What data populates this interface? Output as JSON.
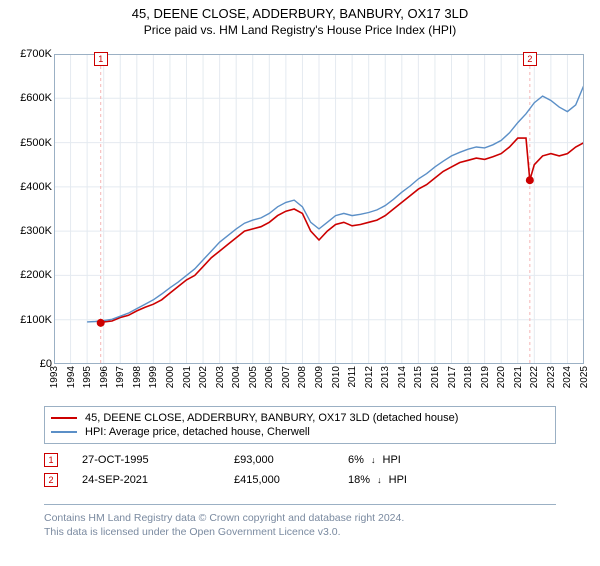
{
  "title": "45, DEENE CLOSE, ADDERBURY, BANBURY, OX17 3LD",
  "subtitle": "Price paid vs. HM Land Registry's House Price Index (HPI)",
  "chart": {
    "type": "line",
    "background_color": "#ffffff",
    "plot_border_color": "#9bb0c4",
    "grid_color": "#e4eaf0",
    "xlim": [
      1993,
      2025
    ],
    "ylim": [
      0,
      700000
    ],
    "ytick_step": 100000,
    "yticks": [
      "£0",
      "£100K",
      "£200K",
      "£300K",
      "£400K",
      "£500K",
      "£600K",
      "£700K"
    ],
    "xticks": [
      1993,
      1994,
      1995,
      1996,
      1997,
      1998,
      1999,
      2000,
      2001,
      2002,
      2003,
      2004,
      2005,
      2006,
      2007,
      2008,
      2009,
      2010,
      2011,
      2012,
      2013,
      2014,
      2015,
      2016,
      2017,
      2018,
      2019,
      2020,
      2021,
      2022,
      2023,
      2024,
      2025
    ],
    "series": [
      {
        "name": "45, DEENE CLOSE, ADDERBURY, BANBURY, OX17 3LD (detached house)",
        "color": "#cc0000",
        "line_width": 1.6,
        "data": [
          [
            1995.82,
            93000
          ],
          [
            1996,
            95000
          ],
          [
            1996.5,
            97000
          ],
          [
            1997,
            105000
          ],
          [
            1997.5,
            110000
          ],
          [
            1998,
            120000
          ],
          [
            1998.5,
            128000
          ],
          [
            1999,
            135000
          ],
          [
            1999.5,
            145000
          ],
          [
            2000,
            160000
          ],
          [
            2000.5,
            175000
          ],
          [
            2001,
            190000
          ],
          [
            2001.5,
            200000
          ],
          [
            2002,
            220000
          ],
          [
            2002.5,
            240000
          ],
          [
            2003,
            255000
          ],
          [
            2003.5,
            270000
          ],
          [
            2004,
            285000
          ],
          [
            2004.5,
            300000
          ],
          [
            2005,
            305000
          ],
          [
            2005.5,
            310000
          ],
          [
            2006,
            320000
          ],
          [
            2006.5,
            335000
          ],
          [
            2007,
            345000
          ],
          [
            2007.5,
            350000
          ],
          [
            2008,
            340000
          ],
          [
            2008.5,
            300000
          ],
          [
            2009,
            280000
          ],
          [
            2009.5,
            300000
          ],
          [
            2010,
            315000
          ],
          [
            2010.5,
            320000
          ],
          [
            2011,
            312000
          ],
          [
            2011.5,
            315000
          ],
          [
            2012,
            320000
          ],
          [
            2012.5,
            325000
          ],
          [
            2013,
            335000
          ],
          [
            2013.5,
            350000
          ],
          [
            2014,
            365000
          ],
          [
            2014.5,
            380000
          ],
          [
            2015,
            395000
          ],
          [
            2015.5,
            405000
          ],
          [
            2016,
            420000
          ],
          [
            2016.5,
            435000
          ],
          [
            2017,
            445000
          ],
          [
            2017.5,
            455000
          ],
          [
            2018,
            460000
          ],
          [
            2018.5,
            465000
          ],
          [
            2019,
            462000
          ],
          [
            2019.5,
            468000
          ],
          [
            2020,
            475000
          ],
          [
            2020.5,
            490000
          ],
          [
            2021,
            510000
          ],
          [
            2021.5,
            510000
          ],
          [
            2021.73,
            415000
          ],
          [
            2022,
            450000
          ],
          [
            2022.5,
            470000
          ],
          [
            2023,
            475000
          ],
          [
            2023.5,
            470000
          ],
          [
            2024,
            475000
          ],
          [
            2024.5,
            490000
          ],
          [
            2025,
            500000
          ]
        ]
      },
      {
        "name": "HPI: Average price, detached house, Cherwell",
        "color": "#5b8fc7",
        "line_width": 1.4,
        "data": [
          [
            1995,
            95000
          ],
          [
            1995.5,
            96000
          ],
          [
            1996,
            98000
          ],
          [
            1996.5,
            101000
          ],
          [
            1997,
            108000
          ],
          [
            1997.5,
            115000
          ],
          [
            1998,
            125000
          ],
          [
            1998.5,
            135000
          ],
          [
            1999,
            145000
          ],
          [
            1999.5,
            158000
          ],
          [
            2000,
            172000
          ],
          [
            2000.5,
            185000
          ],
          [
            2001,
            200000
          ],
          [
            2001.5,
            215000
          ],
          [
            2002,
            235000
          ],
          [
            2002.5,
            255000
          ],
          [
            2003,
            275000
          ],
          [
            2003.5,
            290000
          ],
          [
            2004,
            305000
          ],
          [
            2004.5,
            318000
          ],
          [
            2005,
            325000
          ],
          [
            2005.5,
            330000
          ],
          [
            2006,
            340000
          ],
          [
            2006.5,
            355000
          ],
          [
            2007,
            365000
          ],
          [
            2007.5,
            370000
          ],
          [
            2008,
            355000
          ],
          [
            2008.5,
            320000
          ],
          [
            2009,
            305000
          ],
          [
            2009.5,
            320000
          ],
          [
            2010,
            335000
          ],
          [
            2010.5,
            340000
          ],
          [
            2011,
            335000
          ],
          [
            2011.5,
            338000
          ],
          [
            2012,
            342000
          ],
          [
            2012.5,
            348000
          ],
          [
            2013,
            358000
          ],
          [
            2013.5,
            372000
          ],
          [
            2014,
            388000
          ],
          [
            2014.5,
            402000
          ],
          [
            2015,
            418000
          ],
          [
            2015.5,
            430000
          ],
          [
            2016,
            445000
          ],
          [
            2016.5,
            458000
          ],
          [
            2017,
            470000
          ],
          [
            2017.5,
            478000
          ],
          [
            2018,
            485000
          ],
          [
            2018.5,
            490000
          ],
          [
            2019,
            488000
          ],
          [
            2019.5,
            495000
          ],
          [
            2020,
            505000
          ],
          [
            2020.5,
            522000
          ],
          [
            2021,
            545000
          ],
          [
            2021.5,
            565000
          ],
          [
            2022,
            590000
          ],
          [
            2022.5,
            605000
          ],
          [
            2023,
            595000
          ],
          [
            2023.5,
            580000
          ],
          [
            2024,
            570000
          ],
          [
            2024.5,
            585000
          ],
          [
            2025,
            630000
          ]
        ]
      }
    ],
    "markers": [
      {
        "label": "1",
        "x": 1995.82,
        "y": 93000,
        "dot_color": "#cc0000",
        "dash_color": "#f5b5b5"
      },
      {
        "label": "2",
        "x": 2021.73,
        "y": 415000,
        "dot_color": "#cc0000",
        "dash_color": "#f5b5b5"
      }
    ]
  },
  "legend": {
    "series": [
      {
        "color": "#cc0000",
        "label": "45, DEENE CLOSE, ADDERBURY, BANBURY, OX17 3LD (detached house)"
      },
      {
        "color": "#5b8fc7",
        "label": "HPI: Average price, detached house, Cherwell"
      }
    ],
    "transactions": [
      {
        "marker": "1",
        "date": "27-OCT-1995",
        "price": "£93,000",
        "pct": "6%",
        "flag": "HPI"
      },
      {
        "marker": "2",
        "date": "24-SEP-2021",
        "price": "£415,000",
        "pct": "18%",
        "flag": "HPI"
      }
    ]
  },
  "footer": {
    "line1": "Contains HM Land Registry data © Crown copyright and database right 2024.",
    "line2": "This data is licensed under the Open Government Licence v3.0."
  }
}
